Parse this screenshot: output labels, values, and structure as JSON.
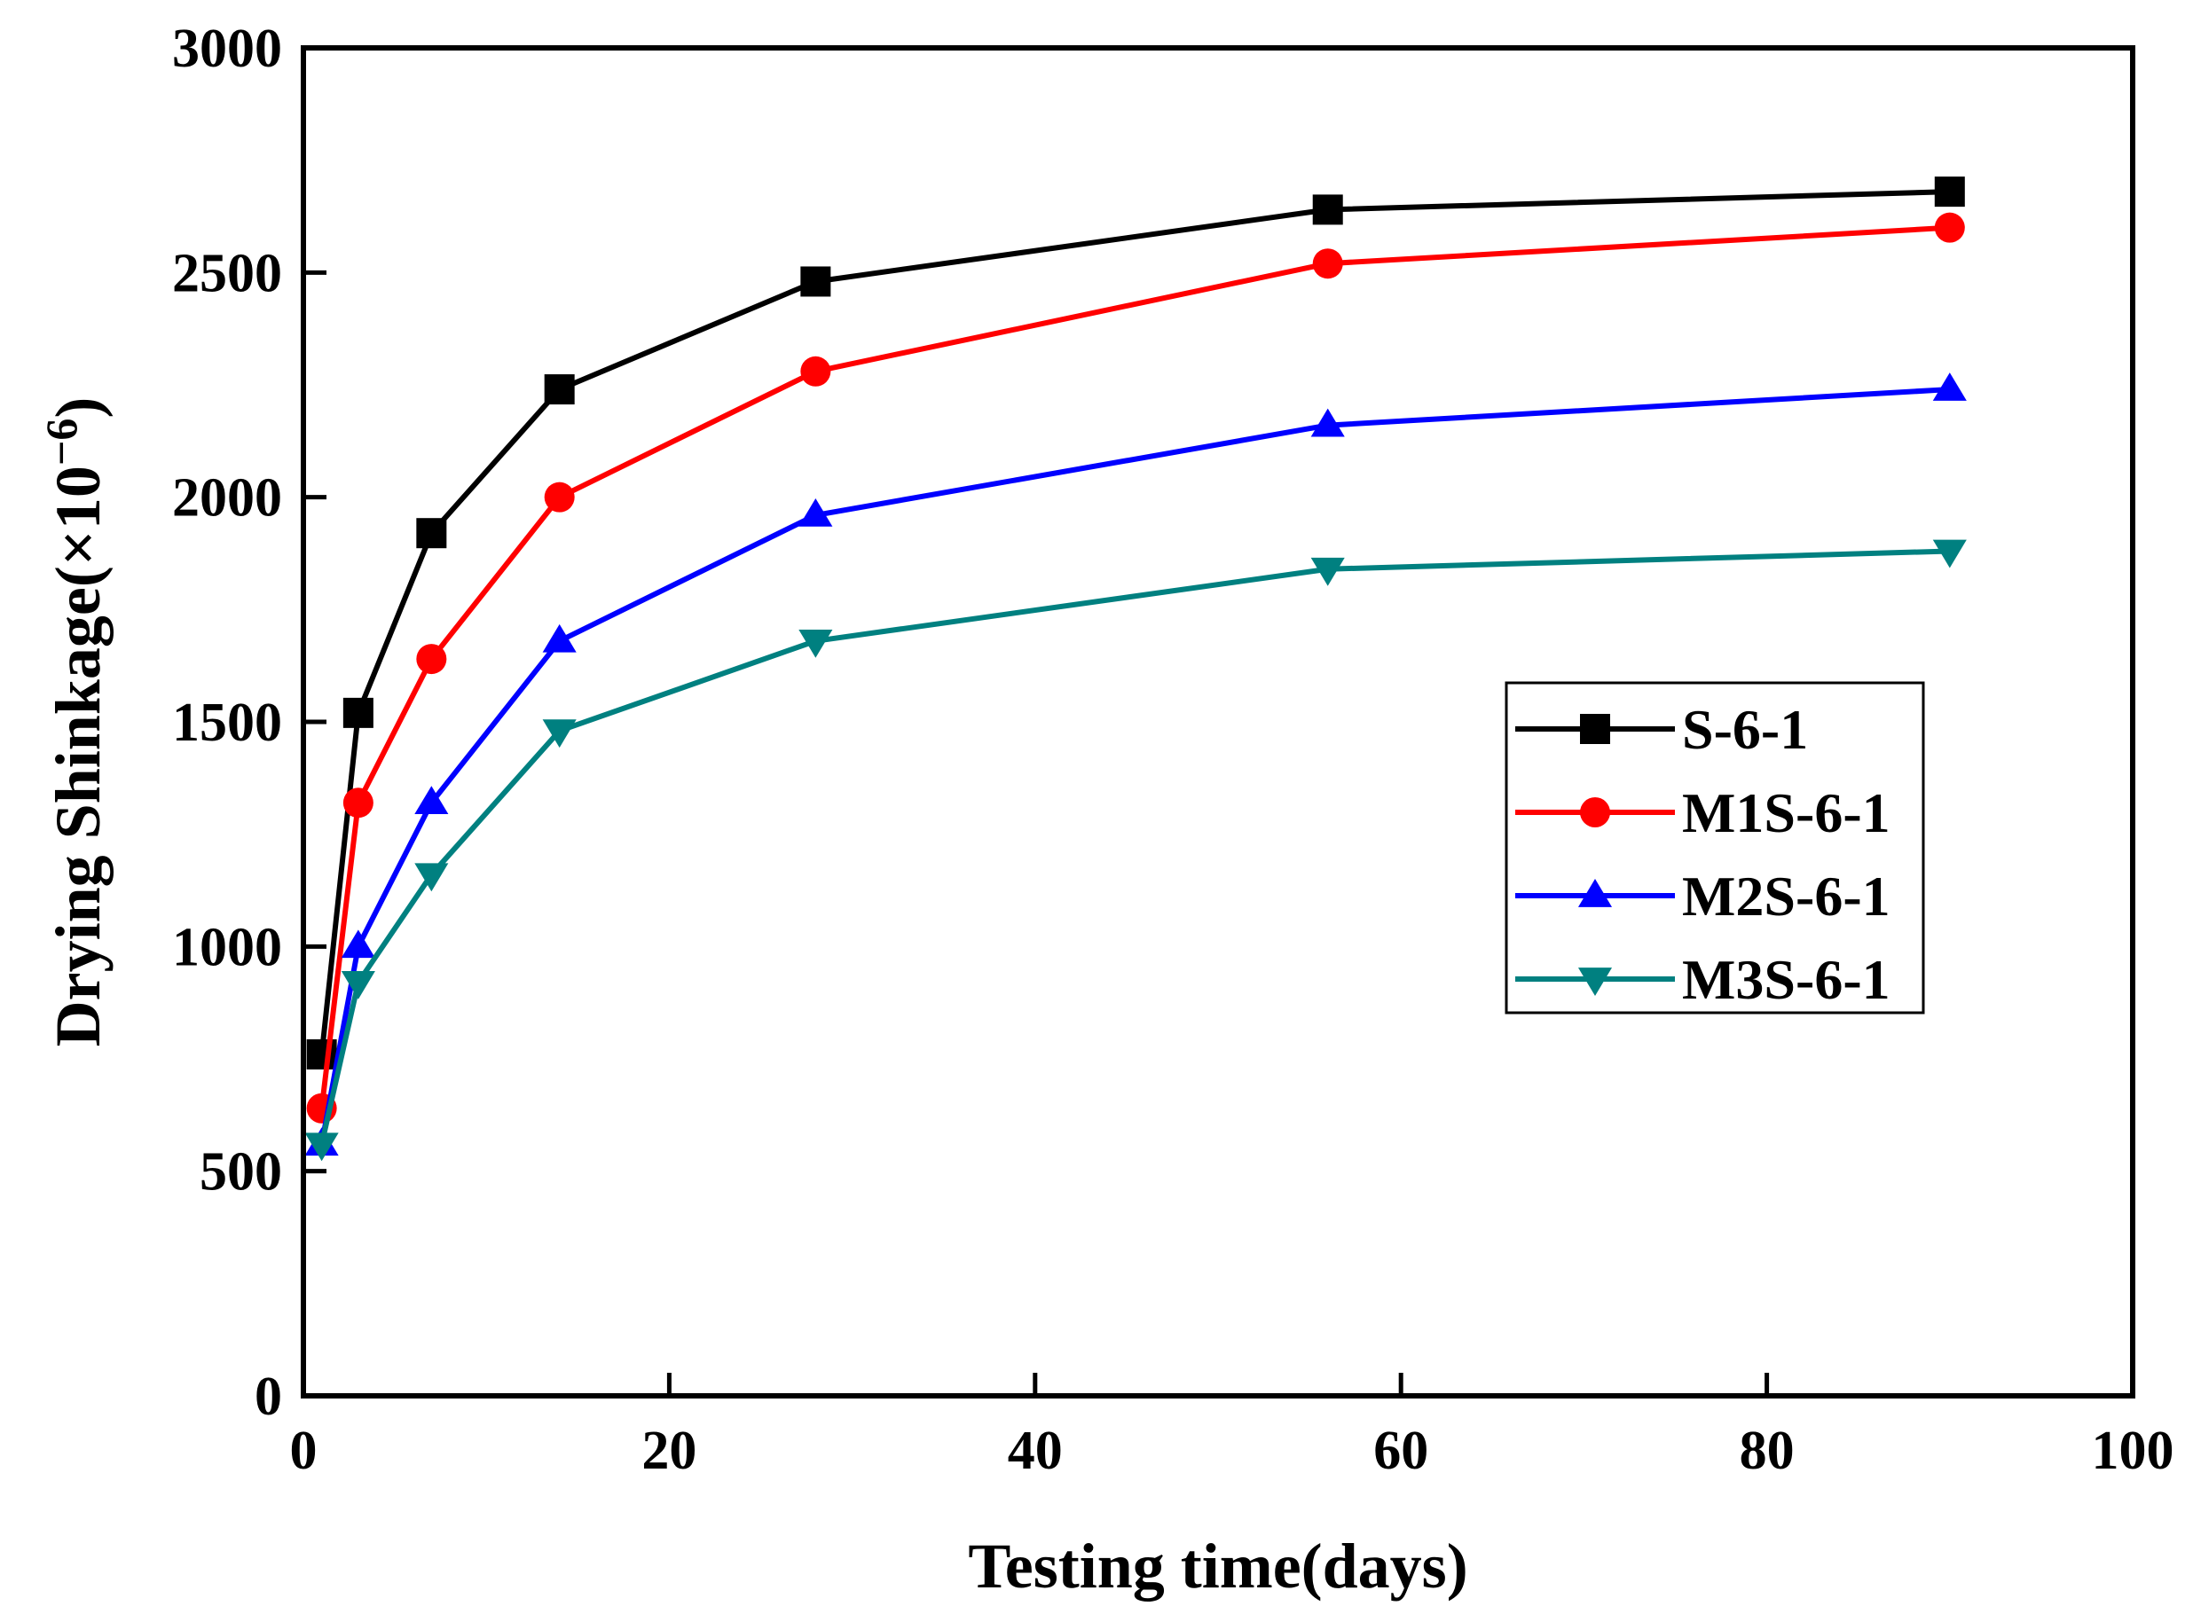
{
  "chart_data": {
    "type": "line",
    "title": "",
    "xlabel": "Testing time(days)",
    "ylabel_prefix": "Drying Shinkage(×10",
    "ylabel_exponent": "−6",
    "ylabel_suffix": ")",
    "xlim": [
      0,
      100
    ],
    "ylim": [
      0,
      3000
    ],
    "xticks": [
      0,
      20,
      40,
      60,
      80,
      100
    ],
    "yticks": [
      0,
      500,
      1000,
      1500,
      2000,
      2500,
      3000
    ],
    "grid": false,
    "legend_position": "center-right",
    "x": [
      1,
      3,
      7,
      14,
      28,
      56,
      90
    ],
    "series": [
      {
        "name": "S-6-1",
        "color": "#000000",
        "marker": "square",
        "values": [
          760,
          1520,
          1920,
          2240,
          2480,
          2640,
          2680
        ]
      },
      {
        "name": "M1S-6-1",
        "color": "#ff0000",
        "marker": "circle",
        "values": [
          640,
          1320,
          1640,
          2000,
          2280,
          2520,
          2600
        ]
      },
      {
        "name": "M2S-6-1",
        "color": "#0000ff",
        "marker": "triangle-up",
        "values": [
          560,
          1000,
          1320,
          1680,
          1960,
          2160,
          2240
        ]
      },
      {
        "name": "M3S-6-1",
        "color": "#008080",
        "marker": "triangle-down",
        "values": [
          560,
          920,
          1160,
          1480,
          1680,
          1840,
          1880
        ]
      }
    ]
  }
}
